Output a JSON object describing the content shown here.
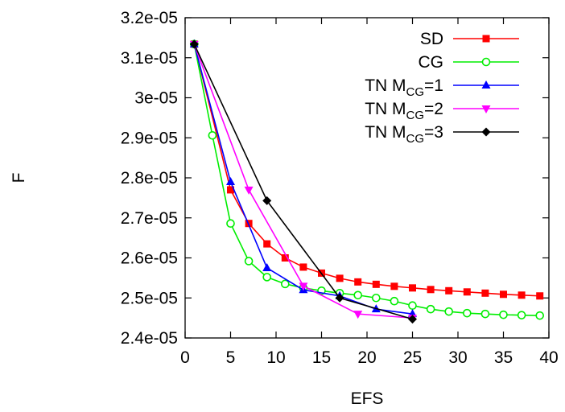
{
  "chart_data": {
    "type": "line",
    "title": "",
    "xlabel": "EFS",
    "ylabel": "F",
    "xlim": [
      0,
      40
    ],
    "ylim": [
      2.4e-05,
      3.2e-05
    ],
    "xticks": [
      0,
      5,
      10,
      15,
      20,
      25,
      30,
      35,
      40
    ],
    "xtick_labels": [
      "0",
      "5",
      "10",
      "15",
      "20",
      "25",
      "30",
      "35",
      "40"
    ],
    "yticks": [
      2.4e-05,
      2.5e-05,
      2.6e-05,
      2.7e-05,
      2.8e-05,
      2.9e-05,
      3e-05,
      3.1e-05,
      3.2e-05
    ],
    "ytick_labels": [
      "2.4e-05",
      "2.5e-05",
      "2.6e-05",
      "2.7e-05",
      "2.8e-05",
      "2.9e-05",
      "3e-05",
      "3.1e-05",
      "3.2e-05"
    ],
    "grid": false,
    "legend_position": "top-right",
    "series": [
      {
        "name": "SD",
        "legend": {
          "prefix": "SD",
          "sub": "",
          "suffix": ""
        },
        "color": "#ff0000",
        "marker": "square",
        "x": [
          1,
          5,
          7,
          9,
          11,
          13,
          15,
          17,
          19,
          21,
          23,
          25,
          27,
          29,
          31,
          33,
          35,
          37,
          39
        ],
        "y": [
          3.134e-05,
          2.77e-05,
          2.686e-05,
          2.635e-05,
          2.6e-05,
          2.577e-05,
          2.562e-05,
          2.549e-05,
          2.54e-05,
          2.534e-05,
          2.529e-05,
          2.525e-05,
          2.521e-05,
          2.518e-05,
          2.515e-05,
          2.512e-05,
          2.509e-05,
          2.507e-05,
          2.505e-05
        ]
      },
      {
        "name": "CG",
        "legend": {
          "prefix": "CG",
          "sub": "",
          "suffix": ""
        },
        "color": "#00ee00",
        "marker": "circle",
        "x": [
          1,
          3,
          5,
          7,
          9,
          11,
          13,
          15,
          17,
          19,
          21,
          23,
          25,
          27,
          29,
          31,
          33,
          35,
          37,
          39
        ],
        "y": [
          3.134e-05,
          2.906e-05,
          2.686e-05,
          2.592e-05,
          2.552e-05,
          2.535e-05,
          2.525e-05,
          2.518e-05,
          2.512e-05,
          2.507e-05,
          2.5e-05,
          2.492e-05,
          2.481e-05,
          2.472e-05,
          2.466e-05,
          2.462e-05,
          2.46e-05,
          2.458e-05,
          2.457e-05,
          2.456e-05
        ]
      },
      {
        "name": "TN M_CG=1",
        "legend": {
          "prefix": "TN M",
          "sub": "CG",
          "suffix": "=1"
        },
        "color": "#0000ff",
        "marker": "triangle-up",
        "x": [
          1,
          5,
          9,
          13,
          17,
          21,
          25
        ],
        "y": [
          3.134e-05,
          2.79e-05,
          2.575e-05,
          2.52e-05,
          2.505e-05,
          2.472e-05,
          2.46e-05
        ]
      },
      {
        "name": "TN M_CG=2",
        "legend": {
          "prefix": "TN M",
          "sub": "CG",
          "suffix": "=2"
        },
        "color": "#ff00ff",
        "marker": "triangle-down",
        "x": [
          1,
          7,
          13,
          19,
          25
        ],
        "y": [
          3.134e-05,
          2.77e-05,
          2.53e-05,
          2.46e-05,
          2.45e-05
        ]
      },
      {
        "name": "TN M_CG=3",
        "legend": {
          "prefix": "TN M",
          "sub": "CG",
          "suffix": "=3"
        },
        "color": "#000000",
        "marker": "diamond",
        "x": [
          1,
          9,
          17,
          25
        ],
        "y": [
          3.134e-05,
          2.743e-05,
          2.5e-05,
          2.447e-05
        ]
      }
    ]
  }
}
